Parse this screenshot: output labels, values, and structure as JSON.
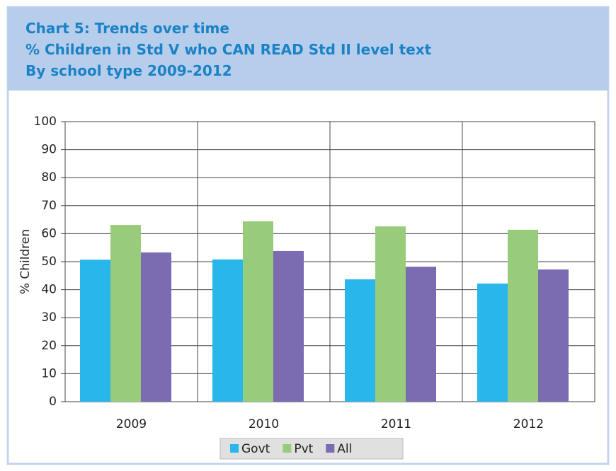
{
  "chart_data": {
    "type": "bar",
    "title": [
      "Chart 5: Trends over time",
      "% Children in Std V who CAN READ Std II level text",
      "By school type 2009-2012"
    ],
    "y_label": "% Children",
    "categories": [
      "2009",
      "2010",
      "2011",
      "2012"
    ],
    "series": [
      {
        "name": "Govt",
        "color": "#29b6ea",
        "values": [
          50.7,
          50.8,
          43.7,
          42.2
        ]
      },
      {
        "name": "Pvt",
        "color": "#99cc7a",
        "values": [
          63.1,
          64.4,
          62.6,
          61.4
        ]
      },
      {
        "name": "All",
        "color": "#7b6bb0",
        "values": [
          53.3,
          53.8,
          48.2,
          47.2
        ]
      }
    ],
    "ylim": [
      0,
      100
    ],
    "yticks": [
      0,
      10,
      20,
      30,
      40,
      50,
      60,
      70,
      80,
      90,
      100
    ],
    "grid": true,
    "legend": "bottom"
  }
}
